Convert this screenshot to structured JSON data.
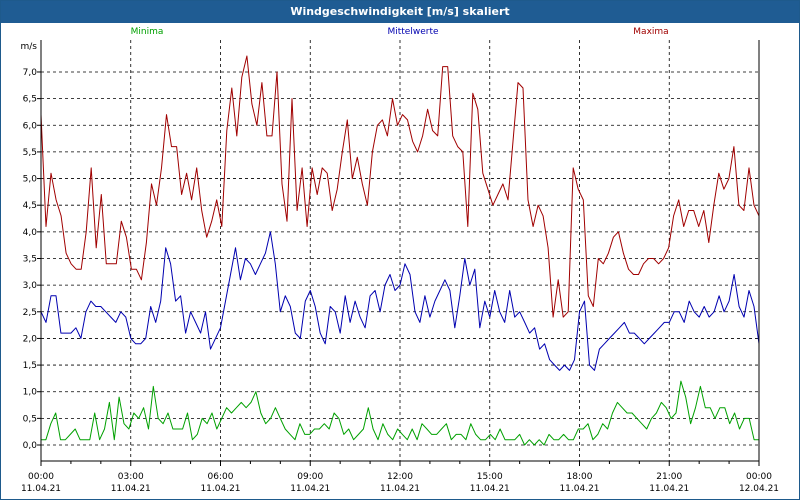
{
  "window": {
    "title": "Windgeschwindigkeit [m/s] skaliert"
  },
  "colors": {
    "titlebar": "#1f5c93",
    "minima": "#00a000",
    "mittelwerte": "#0000b0",
    "maxima": "#a00000"
  },
  "chart_data": {
    "type": "line",
    "unit_label": "m/s",
    "grid": true,
    "legend_placement": "top",
    "ylim": [
      -0.3,
      7.6
    ],
    "y_ticks": [
      "0,0",
      "0,5",
      "1,0",
      "1,5",
      "2,0",
      "2,5",
      "3,0",
      "3,5",
      "4,0",
      "4,5",
      "5,0",
      "5,5",
      "6,0",
      "6,5",
      "7,0"
    ],
    "x_range_hours": [
      0,
      24
    ],
    "x_ticks": [
      {
        "time": "00:00",
        "date": "11.04.21"
      },
      {
        "time": "03:00",
        "date": "11.04.21"
      },
      {
        "time": "06:00",
        "date": "11.04.21"
      },
      {
        "time": "09:00",
        "date": "11.04.21"
      },
      {
        "time": "12:00",
        "date": "11.04.21"
      },
      {
        "time": "15:00",
        "date": "11.04.21"
      },
      {
        "time": "18:00",
        "date": "11.04.21"
      },
      {
        "time": "21:00",
        "date": "11.04.21"
      },
      {
        "time": "00:00",
        "date": "12.04.21"
      }
    ],
    "series": [
      {
        "name": "Maxima",
        "values": [
          6.2,
          4.1,
          5.1,
          4.6,
          4.3,
          3.6,
          3.4,
          3.3,
          3.3,
          4.0,
          5.2,
          3.7,
          4.7,
          3.4,
          3.4,
          3.4,
          4.2,
          3.9,
          3.3,
          3.3,
          3.1,
          3.8,
          4.9,
          4.5,
          5.2,
          6.2,
          5.6,
          5.6,
          4.7,
          5.1,
          4.6,
          5.2,
          4.4,
          3.9,
          4.2,
          4.6,
          4.1,
          5.9,
          6.7,
          5.8,
          6.9,
          7.3,
          6.4,
          6.0,
          6.8,
          5.8,
          5.8,
          7.0,
          4.9,
          4.2,
          6.5,
          4.4,
          5.2,
          4.1,
          5.2,
          4.7,
          5.2,
          5.1,
          4.4,
          4.8,
          5.5,
          6.1,
          5.0,
          5.4,
          4.9,
          4.5,
          5.5,
          6.0,
          6.1,
          5.8,
          6.5,
          6.0,
          6.2,
          6.1,
          5.7,
          5.5,
          5.8,
          6.3,
          5.9,
          5.8,
          7.1,
          7.1,
          5.8,
          5.6,
          5.5,
          4.1,
          6.6,
          6.3,
          5.1,
          4.8,
          4.5,
          4.7,
          4.9,
          4.6,
          5.7,
          6.8,
          6.7,
          4.6,
          4.1,
          4.5,
          4.3,
          3.7,
          2.4,
          3.1,
          2.4,
          2.5,
          5.2,
          4.8,
          4.6,
          2.8,
          2.6,
          3.5,
          3.4,
          3.6,
          3.9,
          4.0,
          3.6,
          3.3,
          3.2,
          3.2,
          3.4,
          3.5,
          3.5,
          3.4,
          3.5,
          3.7,
          4.3,
          4.6,
          4.1,
          4.4,
          4.4,
          4.1,
          4.4,
          3.8,
          4.5,
          5.1,
          4.8,
          5.0,
          5.6,
          4.5,
          4.4,
          5.2,
          4.5,
          4.3
        ]
      },
      {
        "name": "Mittelwerte",
        "values": [
          2.5,
          2.3,
          2.8,
          2.8,
          2.1,
          2.1,
          2.1,
          2.2,
          2.0,
          2.5,
          2.7,
          2.6,
          2.6,
          2.5,
          2.4,
          2.3,
          2.5,
          2.4,
          2.0,
          1.9,
          1.9,
          2.0,
          2.6,
          2.3,
          2.7,
          3.7,
          3.4,
          2.7,
          2.8,
          2.1,
          2.5,
          2.3,
          2.1,
          2.5,
          1.8,
          2.0,
          2.2,
          2.7,
          3.2,
          3.7,
          3.1,
          3.5,
          3.4,
          3.2,
          3.4,
          3.6,
          4.0,
          3.4,
          2.5,
          2.8,
          2.6,
          2.1,
          2.0,
          2.7,
          2.9,
          2.6,
          2.1,
          1.9,
          2.6,
          2.5,
          2.1,
          2.8,
          2.3,
          2.7,
          2.4,
          2.2,
          2.8,
          2.9,
          2.5,
          3.0,
          3.2,
          2.9,
          3.0,
          3.4,
          3.2,
          2.5,
          2.3,
          2.8,
          2.4,
          2.7,
          2.9,
          3.1,
          2.9,
          2.2,
          2.8,
          3.5,
          3.0,
          3.3,
          2.2,
          2.7,
          2.4,
          2.9,
          2.5,
          2.3,
          2.9,
          2.4,
          2.5,
          2.3,
          2.1,
          2.2,
          1.8,
          1.9,
          1.6,
          1.5,
          1.4,
          1.5,
          1.4,
          1.6,
          2.5,
          2.7,
          1.5,
          1.4,
          1.8,
          1.9,
          2.0,
          2.1,
          2.2,
          2.3,
          2.1,
          2.1,
          2.0,
          1.9,
          2.0,
          2.1,
          2.2,
          2.3,
          2.3,
          2.5,
          2.5,
          2.3,
          2.7,
          2.5,
          2.4,
          2.6,
          2.4,
          2.5,
          2.8,
          2.5,
          2.7,
          3.2,
          2.6,
          2.4,
          2.9,
          2.6,
          1.9
        ]
      },
      {
        "name": "Minima",
        "values": [
          0.1,
          0.1,
          0.4,
          0.6,
          0.1,
          0.1,
          0.2,
          0.3,
          0.1,
          0.1,
          0.1,
          0.6,
          0.1,
          0.3,
          0.8,
          0.1,
          0.9,
          0.4,
          0.3,
          0.6,
          0.5,
          0.7,
          0.3,
          1.1,
          0.5,
          0.4,
          0.6,
          0.3,
          0.3,
          0.3,
          0.6,
          0.1,
          0.2,
          0.5,
          0.4,
          0.6,
          0.3,
          0.5,
          0.7,
          0.6,
          0.7,
          0.8,
          0.7,
          0.8,
          1.0,
          0.6,
          0.4,
          0.5,
          0.7,
          0.5,
          0.3,
          0.2,
          0.1,
          0.4,
          0.2,
          0.2,
          0.3,
          0.3,
          0.4,
          0.3,
          0.6,
          0.5,
          0.2,
          0.3,
          0.1,
          0.2,
          0.3,
          0.7,
          0.3,
          0.1,
          0.4,
          0.2,
          0.1,
          0.3,
          0.2,
          0.1,
          0.3,
          0.1,
          0.4,
          0.3,
          0.2,
          0.2,
          0.3,
          0.4,
          0.1,
          0.2,
          0.2,
          0.1,
          0.4,
          0.2,
          0.1,
          0.1,
          0.2,
          0.1,
          0.3,
          0.1,
          0.1,
          0.1,
          0.2,
          0.0,
          0.1,
          0.0,
          0.1,
          0.0,
          0.2,
          0.1,
          0.1,
          0.2,
          0.1,
          0.1,
          0.3,
          0.3,
          0.4,
          0.1,
          0.2,
          0.4,
          0.3,
          0.6,
          0.8,
          0.7,
          0.6,
          0.6,
          0.5,
          0.4,
          0.3,
          0.5,
          0.6,
          0.8,
          0.7,
          0.5,
          0.6,
          1.2,
          0.9,
          0.4,
          0.7,
          1.1,
          0.7,
          0.7,
          0.5,
          0.7,
          0.7,
          0.4,
          0.6,
          0.3,
          0.5,
          0.5,
          0.1,
          0.1
        ]
      }
    ]
  }
}
